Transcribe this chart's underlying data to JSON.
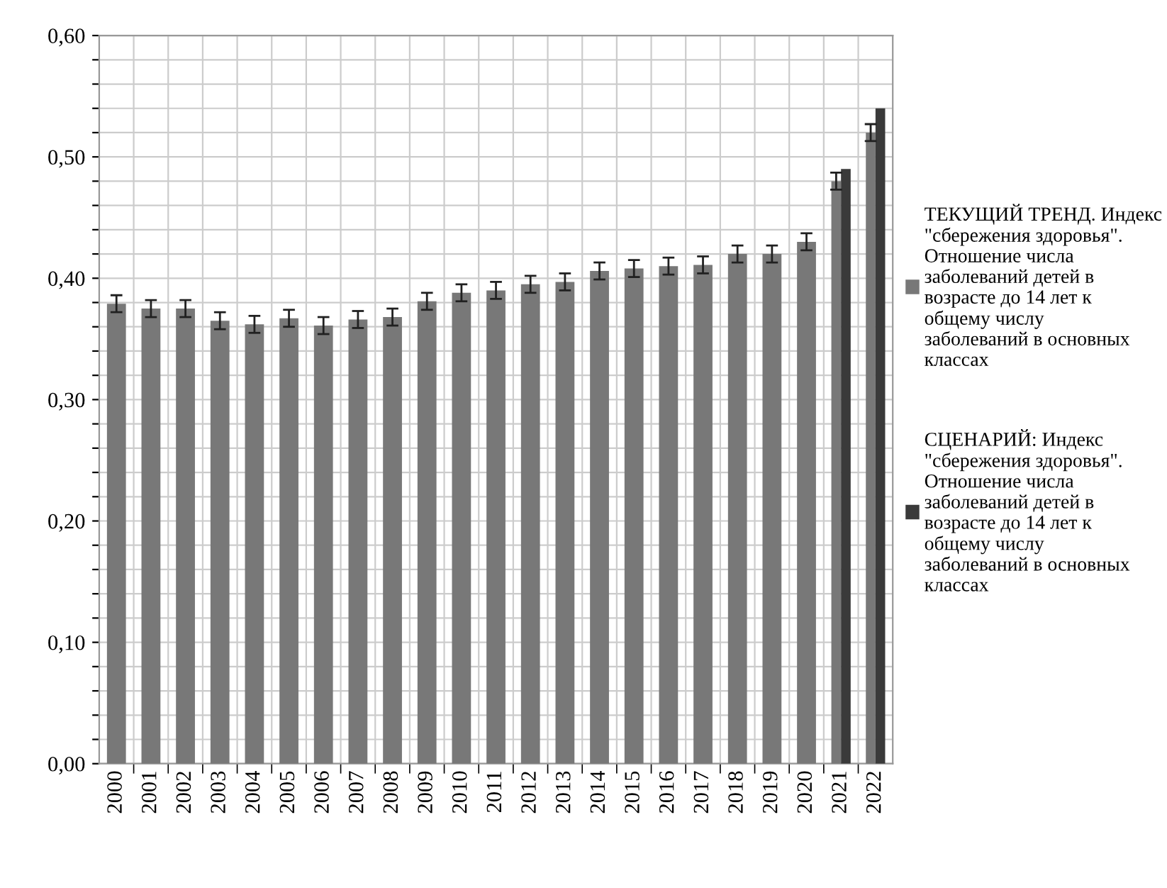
{
  "chart_data": {
    "type": "bar",
    "categories": [
      "2000",
      "2001",
      "2002",
      "2003",
      "2004",
      "2005",
      "2006",
      "2007",
      "2008",
      "2009",
      "2010",
      "2011",
      "2012",
      "2013",
      "2014",
      "2015",
      "2016",
      "2017",
      "2018",
      "2019",
      "2020",
      "2021",
      "2022"
    ],
    "series": [
      {
        "name": "ТЕКУЩИЙ ТРЕНД. Индекс \"сбережения здоровья\". Отношение числа заболеваний детей в возрасте до 14 лет к общему числу заболеваний в основных классах",
        "color": "#787878",
        "values": [
          0.379,
          0.375,
          0.375,
          0.365,
          0.362,
          0.367,
          0.361,
          0.366,
          0.368,
          0.381,
          0.388,
          0.39,
          0.395,
          0.397,
          0.406,
          0.408,
          0.41,
          0.411,
          0.42,
          0.42,
          0.43,
          0.48,
          0.52
        ],
        "errors": [
          0.007,
          0.007,
          0.007,
          0.007,
          0.007,
          0.007,
          0.007,
          0.007,
          0.007,
          0.007,
          0.007,
          0.007,
          0.007,
          0.007,
          0.007,
          0.007,
          0.007,
          0.007,
          0.007,
          0.007,
          0.007,
          0.007,
          0.007
        ]
      },
      {
        "name": "СЦЕНАРИЙ: Индекс \"сбережения здоровья\". Отношение числа заболеваний детей в возрасте до 14 лет к общему числу заболеваний в основных классах",
        "color": "#3a3a3a",
        "values": [
          null,
          null,
          null,
          null,
          null,
          null,
          null,
          null,
          null,
          null,
          null,
          null,
          null,
          null,
          null,
          null,
          null,
          null,
          null,
          null,
          null,
          0.49,
          0.54
        ]
      }
    ],
    "ylim": [
      0,
      0.6
    ],
    "yticks": [
      {
        "value": 0,
        "label": "0,00"
      },
      {
        "value": 0.02,
        "label": null
      },
      {
        "value": 0.04,
        "label": null
      },
      {
        "value": 0.06,
        "label": null
      },
      {
        "value": 0.08,
        "label": null
      },
      {
        "value": 0.1,
        "label": "0,10"
      },
      {
        "value": 0.12,
        "label": null
      },
      {
        "value": 0.14,
        "label": null
      },
      {
        "value": 0.16,
        "label": null
      },
      {
        "value": 0.18,
        "label": null
      },
      {
        "value": 0.2,
        "label": "0,20"
      },
      {
        "value": 0.22,
        "label": null
      },
      {
        "value": 0.24,
        "label": null
      },
      {
        "value": 0.26,
        "label": null
      },
      {
        "value": 0.28,
        "label": null
      },
      {
        "value": 0.3,
        "label": "0,30"
      },
      {
        "value": 0.32,
        "label": null
      },
      {
        "value": 0.34,
        "label": null
      },
      {
        "value": 0.36,
        "label": null
      },
      {
        "value": 0.38,
        "label": null
      },
      {
        "value": 0.4,
        "label": "0,40"
      },
      {
        "value": 0.42,
        "label": null
      },
      {
        "value": 0.44,
        "label": null
      },
      {
        "value": 0.46,
        "label": null
      },
      {
        "value": 0.48,
        "label": null
      },
      {
        "value": 0.5,
        "label": "0,50"
      },
      {
        "value": 0.52,
        "label": null
      },
      {
        "value": 0.54,
        "label": null
      },
      {
        "value": 0.56,
        "label": null
      },
      {
        "value": 0.58,
        "label": null
      },
      {
        "value": 0.6,
        "label": "0,60"
      }
    ],
    "grid": true,
    "legend": "right"
  }
}
